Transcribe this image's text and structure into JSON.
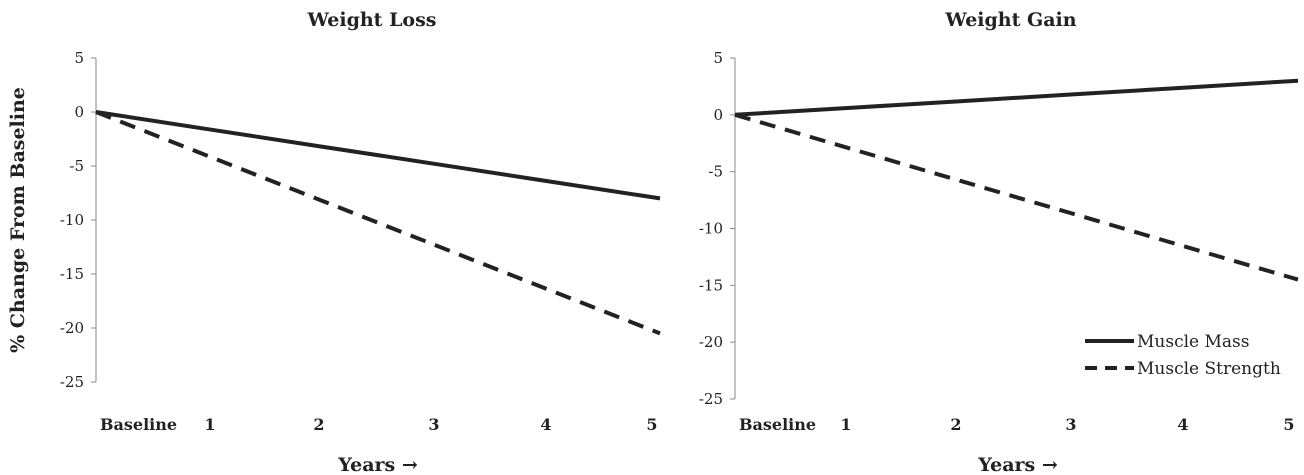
{
  "y_axis_label": "% Change From Baseline",
  "legend": {
    "placement": "bottom-right of right panel",
    "items": [
      {
        "label": "Muscle Mass",
        "style": "solid"
      },
      {
        "label": "Muscle Strength",
        "style": "dashed"
      }
    ]
  },
  "colors": {
    "line": "#222222",
    "axis": "#888888",
    "background": "#ffffff"
  },
  "chart_data": [
    {
      "type": "line",
      "title": "Weight Loss",
      "xlabel": "Years →",
      "ylabel": "% Change From Baseline",
      "categories": [
        "Baseline",
        "1",
        "2",
        "3",
        "4",
        "5"
      ],
      "x": [
        0,
        1,
        2,
        3,
        4,
        5
      ],
      "ylim": [
        -25,
        5
      ],
      "yticks": [
        5,
        0,
        -5,
        -10,
        -15,
        -20,
        -25
      ],
      "grid": false,
      "series": [
        {
          "name": "Muscle Mass",
          "style": "solid",
          "values": [
            0,
            -1.6,
            -3.2,
            -4.8,
            -6.4,
            -8
          ]
        },
        {
          "name": "Muscle Strength",
          "style": "dashed",
          "values": [
            0,
            -4.1,
            -8.2,
            -12.3,
            -16.4,
            -20.5
          ]
        }
      ]
    },
    {
      "type": "line",
      "title": "Weight Gain",
      "xlabel": "Years →",
      "ylabel": "",
      "categories": [
        "Baseline",
        "1",
        "2",
        "3",
        "4",
        "5"
      ],
      "x": [
        0,
        1,
        2,
        3,
        4,
        5
      ],
      "ylim": [
        -25,
        5
      ],
      "yticks": [
        5,
        0,
        -5,
        -10,
        -15,
        -20,
        -25
      ],
      "grid": false,
      "series": [
        {
          "name": "Muscle Mass",
          "style": "solid",
          "values": [
            0,
            0.6,
            1.2,
            1.8,
            2.4,
            3
          ]
        },
        {
          "name": "Muscle Strength",
          "style": "dashed",
          "values": [
            0,
            -2.9,
            -5.8,
            -8.7,
            -11.6,
            -14.5
          ]
        }
      ]
    }
  ]
}
